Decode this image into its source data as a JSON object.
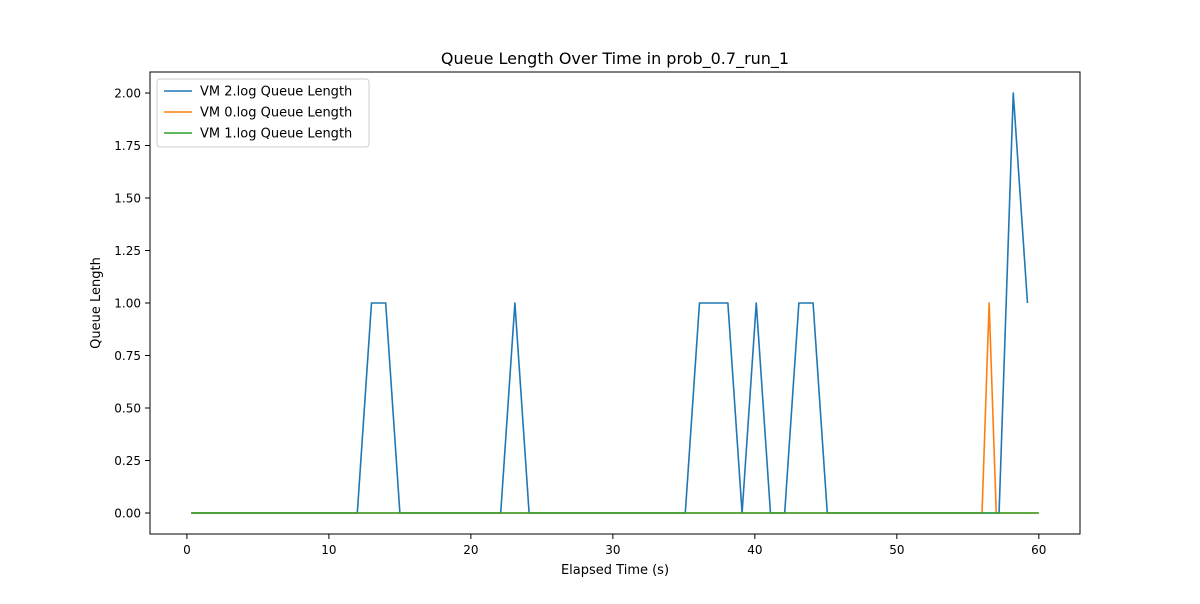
{
  "chart_data": {
    "type": "line",
    "title": "Queue Length Over Time in prob_0.7_run_1",
    "xlabel": "Elapsed Time (s)",
    "ylabel": "Queue Length",
    "xlim": [
      -2.6,
      62.9
    ],
    "ylim": [
      -0.1,
      2.1
    ],
    "xticks": [
      0,
      10,
      20,
      30,
      40,
      50,
      60
    ],
    "xtick_labels": [
      "0",
      "10",
      "20",
      "30",
      "40",
      "50",
      "60"
    ],
    "yticks": [
      0,
      0.25,
      0.5,
      0.75,
      1.0,
      1.25,
      1.5,
      1.75,
      2.0
    ],
    "ytick_labels": [
      "0.00",
      "0.25",
      "0.50",
      "0.75",
      "1.00",
      "1.25",
      "1.50",
      "1.75",
      "2.00"
    ],
    "grid": false,
    "legend_position": "upper-left",
    "series": [
      {
        "name": "VM 2.log Queue Length",
        "color": "#1f77b4",
        "points": [
          [
            0.3,
            0
          ],
          [
            12.0,
            0
          ],
          [
            13.0,
            1
          ],
          [
            14.0,
            1
          ],
          [
            15.0,
            0
          ],
          [
            22.1,
            0
          ],
          [
            23.1,
            1
          ],
          [
            24.1,
            0
          ],
          [
            35.1,
            0
          ],
          [
            36.1,
            1
          ],
          [
            38.1,
            1
          ],
          [
            39.1,
            0
          ],
          [
            40.1,
            1
          ],
          [
            41.1,
            0
          ],
          [
            42.1,
            0
          ],
          [
            43.1,
            1
          ],
          [
            44.1,
            1
          ],
          [
            45.1,
            0
          ],
          [
            57.2,
            0
          ],
          [
            58.2,
            2
          ],
          [
            59.2,
            1
          ]
        ]
      },
      {
        "name": "VM 0.log Queue Length",
        "color": "#ff7f0e",
        "points": [
          [
            0.3,
            0
          ],
          [
            56.0,
            0
          ],
          [
            56.5,
            1
          ],
          [
            57.0,
            0
          ],
          [
            60.0,
            0
          ]
        ]
      },
      {
        "name": "VM 1.log Queue Length",
        "color": "#2ca02c",
        "points": [
          [
            0.3,
            0
          ],
          [
            60.0,
            0
          ]
        ]
      }
    ]
  }
}
